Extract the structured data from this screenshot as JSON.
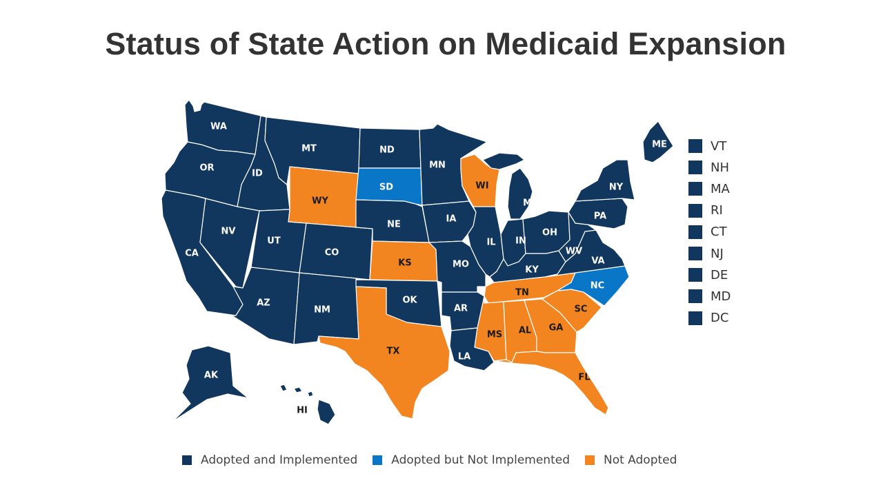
{
  "title": "Status of State Action on Medicaid Expansion",
  "colors": {
    "adopted_implemented": "#12375e",
    "adopted_not_implemented": "#0a76c8",
    "not_adopted": "#f28520",
    "label_on_dark": "#ffffff",
    "label_on_orange": "#1a1a1a"
  },
  "legend": [
    {
      "key": "adopted_implemented",
      "label": "Adopted and Implemented"
    },
    {
      "key": "adopted_not_implemented",
      "label": "Adopted but Not Implemented"
    },
    {
      "key": "not_adopted",
      "label": "Not Adopted"
    }
  ],
  "small_states": [
    {
      "abbr": "VT",
      "status": "adopted_implemented"
    },
    {
      "abbr": "NH",
      "status": "adopted_implemented"
    },
    {
      "abbr": "MA",
      "status": "adopted_implemented"
    },
    {
      "abbr": "RI",
      "status": "adopted_implemented"
    },
    {
      "abbr": "CT",
      "status": "adopted_implemented"
    },
    {
      "abbr": "NJ",
      "status": "adopted_implemented"
    },
    {
      "abbr": "DE",
      "status": "adopted_implemented"
    },
    {
      "abbr": "MD",
      "status": "adopted_implemented"
    },
    {
      "abbr": "DC",
      "status": "adopted_implemented"
    }
  ],
  "states": [
    {
      "abbr": "WA",
      "status": "adopted_implemented"
    },
    {
      "abbr": "OR",
      "status": "adopted_implemented"
    },
    {
      "abbr": "CA",
      "status": "adopted_implemented"
    },
    {
      "abbr": "ID",
      "status": "adopted_implemented"
    },
    {
      "abbr": "NV",
      "status": "adopted_implemented"
    },
    {
      "abbr": "MT",
      "status": "adopted_implemented"
    },
    {
      "abbr": "WY",
      "status": "not_adopted"
    },
    {
      "abbr": "UT",
      "status": "adopted_implemented"
    },
    {
      "abbr": "CO",
      "status": "adopted_implemented"
    },
    {
      "abbr": "AZ",
      "status": "adopted_implemented"
    },
    {
      "abbr": "NM",
      "status": "adopted_implemented"
    },
    {
      "abbr": "ND",
      "status": "adopted_implemented"
    },
    {
      "abbr": "SD",
      "status": "adopted_not_implemented"
    },
    {
      "abbr": "NE",
      "status": "adopted_implemented"
    },
    {
      "abbr": "KS",
      "status": "not_adopted"
    },
    {
      "abbr": "OK",
      "status": "adopted_implemented"
    },
    {
      "abbr": "TX",
      "status": "not_adopted"
    },
    {
      "abbr": "MN",
      "status": "adopted_implemented"
    },
    {
      "abbr": "IA",
      "status": "adopted_implemented"
    },
    {
      "abbr": "MO",
      "status": "adopted_implemented"
    },
    {
      "abbr": "AR",
      "status": "adopted_implemented"
    },
    {
      "abbr": "LA",
      "status": "adopted_implemented"
    },
    {
      "abbr": "WI",
      "status": "not_adopted"
    },
    {
      "abbr": "IL",
      "status": "adopted_implemented"
    },
    {
      "abbr": "MI",
      "status": "adopted_implemented"
    },
    {
      "abbr": "IN",
      "status": "adopted_implemented"
    },
    {
      "abbr": "OH",
      "status": "adopted_implemented"
    },
    {
      "abbr": "KY",
      "status": "adopted_implemented"
    },
    {
      "abbr": "TN",
      "status": "not_adopted"
    },
    {
      "abbr": "MS",
      "status": "not_adopted"
    },
    {
      "abbr": "AL",
      "status": "not_adopted"
    },
    {
      "abbr": "GA",
      "status": "not_adopted"
    },
    {
      "abbr": "FL",
      "status": "not_adopted"
    },
    {
      "abbr": "SC",
      "status": "not_adopted"
    },
    {
      "abbr": "NC",
      "status": "adopted_not_implemented"
    },
    {
      "abbr": "VA",
      "status": "adopted_implemented"
    },
    {
      "abbr": "WV",
      "status": "adopted_implemented"
    },
    {
      "abbr": "PA",
      "status": "adopted_implemented"
    },
    {
      "abbr": "NY",
      "status": "adopted_implemented"
    },
    {
      "abbr": "ME",
      "status": "adopted_implemented"
    },
    {
      "abbr": "AK",
      "status": "adopted_implemented"
    },
    {
      "abbr": "HI",
      "status": "adopted_implemented"
    }
  ]
}
